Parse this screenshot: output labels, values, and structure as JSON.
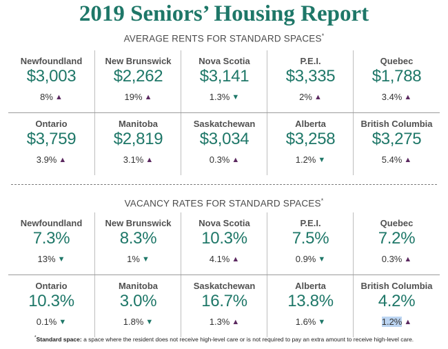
{
  "title": "2019 Seniors’ Housing Report",
  "sections": {
    "rents": {
      "heading": "AVERAGE RENTS FOR STANDARD SPACES",
      "rows": [
        [
          {
            "name": "Newfoundland",
            "value": "$3,003",
            "change": "8%",
            "direction": "up"
          },
          {
            "name": "New Brunswick",
            "value": "$2,262",
            "change": "19%",
            "direction": "up"
          },
          {
            "name": "Nova Scotia",
            "value": "$3,141",
            "change": "1.3%",
            "direction": "down"
          },
          {
            "name": "P.E.I.",
            "value": "$3,335",
            "change": "2%",
            "direction": "up"
          },
          {
            "name": "Quebec",
            "value": "$1,788",
            "change": "3.4%",
            "direction": "up"
          }
        ],
        [
          {
            "name": "Ontario",
            "value": "$3,759",
            "change": "3.9%",
            "direction": "up"
          },
          {
            "name": "Manitoba",
            "value": "$2,819",
            "change": "3.1%",
            "direction": "up"
          },
          {
            "name": "Saskatchewan",
            "value": "$3,034",
            "change": "0.3%",
            "direction": "up"
          },
          {
            "name": "Alberta",
            "value": "$3,258",
            "change": "1.2%",
            "direction": "down"
          },
          {
            "name": "British Columbia",
            "value": "$3,275",
            "change": "5.4%",
            "direction": "up"
          }
        ]
      ]
    },
    "vacancy": {
      "heading": "VACANCY RATES FOR STANDARD SPACES",
      "rows": [
        [
          {
            "name": "Newfoundland",
            "value": "7.3%",
            "change": "13%",
            "direction": "down"
          },
          {
            "name": "New Brunswick",
            "value": "8.3%",
            "change": "1%",
            "direction": "down"
          },
          {
            "name": "Nova Scotia",
            "value": "10.3%",
            "change": "4.1%",
            "direction": "up"
          },
          {
            "name": "P.E.I.",
            "value": "7.5%",
            "change": "0.9%",
            "direction": "down"
          },
          {
            "name": "Quebec",
            "value": "7.2%",
            "change": "0.3%",
            "direction": "up"
          }
        ],
        [
          {
            "name": "Ontario",
            "value": "10.3%",
            "change": "0.1%",
            "direction": "down"
          },
          {
            "name": "Manitoba",
            "value": "3.0%",
            "change": "1.8%",
            "direction": "down"
          },
          {
            "name": "Saskatchewan",
            "value": "16.7%",
            "change": "1.3%",
            "direction": "up"
          },
          {
            "name": "Alberta",
            "value": "13.8%",
            "change": "1.6%",
            "direction": "down"
          },
          {
            "name": "British Columbia",
            "value": "4.2%",
            "change": "1.2%",
            "direction": "up",
            "highlight": true
          }
        ]
      ]
    }
  },
  "footnote": {
    "asterisk": "*",
    "term": "Standard space:",
    "text": " a space where the resident does not receive high-level care or is not required to pay an extra amount to receive high-level care."
  },
  "colors": {
    "accent": "#1e7768",
    "up_arrow": "#5b2960",
    "down_arrow": "#1e7768"
  },
  "icons": {
    "up": "arrow-up-icon",
    "down": "arrow-down-icon"
  }
}
